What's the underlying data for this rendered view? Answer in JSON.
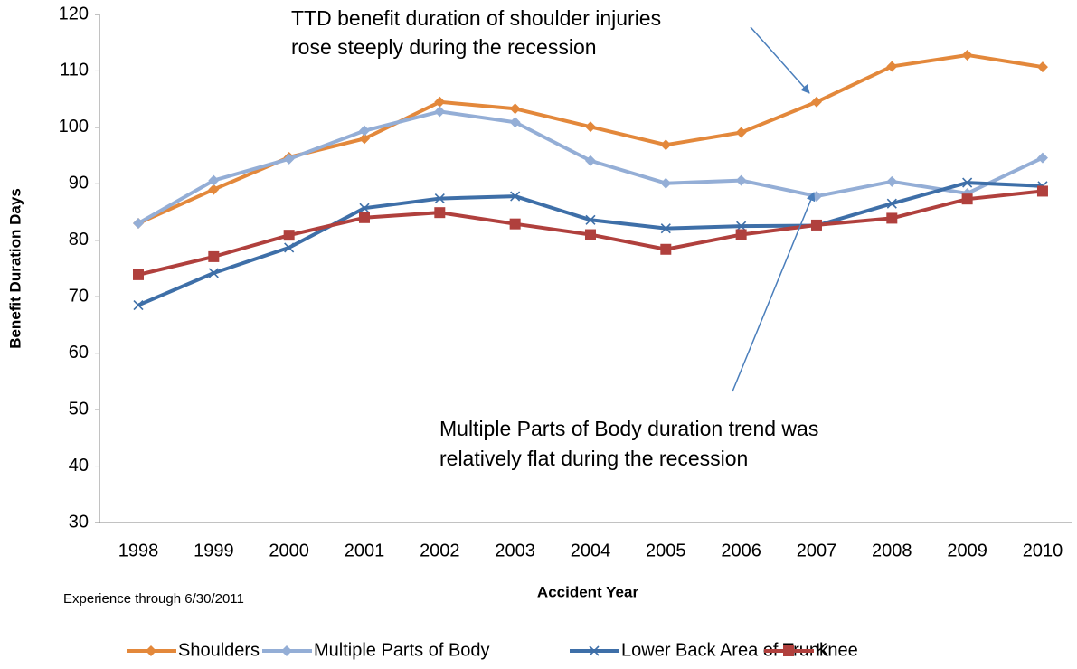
{
  "chart_data": {
    "type": "line",
    "y_label": "Benefit Duration Days",
    "x_label": "Accident Year",
    "note": "Experience through 6/30/2011",
    "annotations": [
      {
        "lines": [
          "TTD benefit duration of shoulder injuries",
          "rose steeply during the recession"
        ]
      },
      {
        "lines": [
          "Multiple Parts of Body duration trend was",
          "relatively flat during the recession"
        ]
      }
    ],
    "categories": [
      "1998",
      "1999",
      "2000",
      "2001",
      "2002",
      "2003",
      "2004",
      "2005",
      "2006",
      "2007",
      "2008",
      "2009",
      "2010"
    ],
    "ylim": [
      30,
      120
    ],
    "yticks": [
      30,
      40,
      50,
      60,
      70,
      80,
      90,
      100,
      110,
      120
    ],
    "legend": "bottom",
    "series": [
      {
        "name": "Shoulders",
        "color": "#E3883B",
        "marker": "diamond",
        "values": [
          83,
          89,
          94.7,
          98,
          104.5,
          103.3,
          100.1,
          96.9,
          99.1,
          104.5,
          110.8,
          112.8,
          110.7
        ]
      },
      {
        "name": "Multiple Parts of Body",
        "color": "#94AED6",
        "marker": "diamond",
        "values": [
          83,
          90.6,
          94.4,
          99.4,
          102.8,
          100.9,
          94.1,
          90.1,
          90.6,
          87.8,
          90.4,
          88.3,
          94.6
        ]
      },
      {
        "name": "Lower Back Area of Trunk",
        "color": "#3E6FA8",
        "marker": "x",
        "values": [
          68.5,
          74.2,
          78.7,
          85.7,
          87.4,
          87.8,
          83.6,
          82.1,
          82.5,
          82.6,
          86.5,
          90.2,
          89.6
        ]
      },
      {
        "name": "Knee",
        "color": "#B0403D",
        "marker": "square",
        "values": [
          73.9,
          77.1,
          80.9,
          84,
          84.9,
          82.9,
          81,
          78.4,
          81,
          82.7,
          83.9,
          87.3,
          88.7
        ]
      }
    ]
  }
}
